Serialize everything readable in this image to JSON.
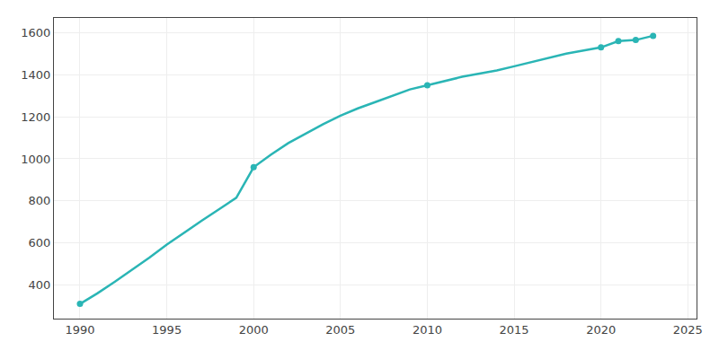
{
  "chart_data": {
    "type": "line",
    "x": [
      1990,
      1991,
      1992,
      1993,
      1994,
      1995,
      1996,
      1997,
      1998,
      1999,
      2000,
      2001,
      2002,
      2003,
      2004,
      2005,
      2006,
      2007,
      2008,
      2009,
      2010,
      2011,
      2012,
      2013,
      2014,
      2015,
      2016,
      2017,
      2018,
      2019,
      2020,
      2021,
      2022,
      2023
    ],
    "series": [
      {
        "type": "line",
        "color": "#2ab5b5",
        "values": [
          310,
          360,
          415,
          472,
          530,
          592,
          650,
          705,
          760,
          815,
          960,
          1020,
          1075,
          1120,
          1165,
          1205,
          1240,
          1270,
          1300,
          1330,
          1350,
          1370,
          1390,
          1405,
          1420,
          1440,
          1460,
          1480,
          1500,
          1515,
          1530,
          1560,
          1565,
          1585
        ]
      },
      {
        "type": "scatter",
        "marker": "circle",
        "color": "#2ab5b5",
        "x": [
          1990,
          2000,
          2010,
          2020,
          2021,
          2022,
          2023
        ],
        "values": [
          310,
          960,
          1350,
          1530,
          1560,
          1565,
          1585
        ]
      }
    ],
    "xlim": [
      1988.5,
      2025.5
    ],
    "ylim": [
      240,
      1670
    ],
    "xticks": [
      1990,
      1995,
      2000,
      2005,
      2010,
      2015,
      2020,
      2025
    ],
    "yticks": [
      400,
      600,
      800,
      1000,
      1200,
      1400,
      1600
    ],
    "grid": true
  }
}
